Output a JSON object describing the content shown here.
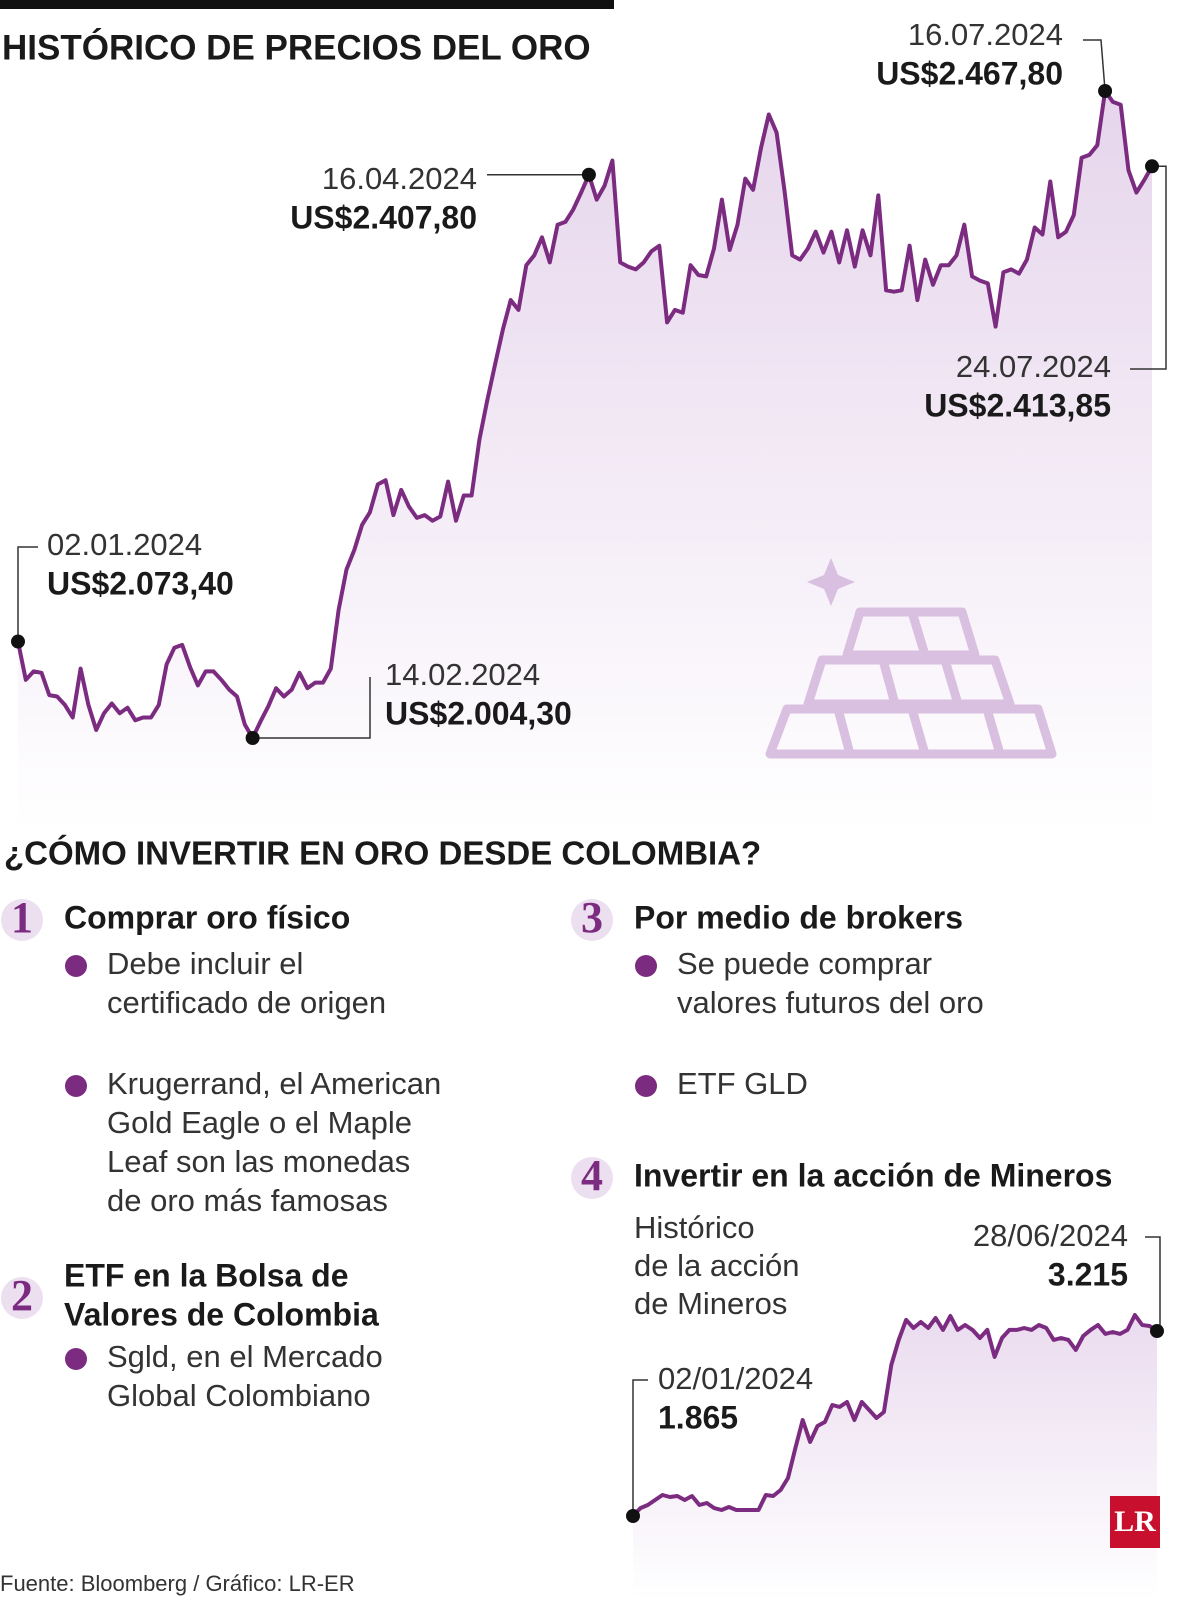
{
  "chart_data": [
    {
      "type": "line",
      "title": "HISTÓRICO DE PRECIOS DEL ORO",
      "color": "#7b2b80",
      "values": [
        2073.4,
        2046,
        2052,
        2051,
        2035,
        2034,
        2028,
        2019,
        2054,
        2028,
        2010,
        2022,
        2029,
        2022,
        2026,
        2017,
        2019,
        2019,
        2028,
        2057,
        2069,
        2071,
        2055,
        2042,
        2052,
        2052,
        2046,
        2039,
        2034,
        2014,
        2004.3,
        2016,
        2027,
        2040,
        2034,
        2039,
        2051,
        2040,
        2044,
        2044,
        2054,
        2096,
        2125,
        2139,
        2157,
        2166,
        2186,
        2189,
        2164,
        2182,
        2170,
        2162,
        2164,
        2160,
        2163,
        2188,
        2160,
        2178,
        2178,
        2218,
        2246,
        2272,
        2297,
        2318,
        2311,
        2343,
        2350,
        2363,
        2345,
        2372,
        2374,
        2383,
        2395,
        2407.8,
        2390,
        2400,
        2418,
        2345,
        2342,
        2340,
        2345,
        2353,
        2357,
        2302,
        2311,
        2309,
        2343,
        2336,
        2335,
        2355,
        2390,
        2354,
        2372,
        2405,
        2397,
        2427,
        2451,
        2438,
        2397,
        2350,
        2347,
        2355,
        2367,
        2352,
        2367,
        2345,
        2368,
        2342,
        2368,
        2350,
        2393,
        2325,
        2324,
        2325,
        2357,
        2318,
        2347,
        2329,
        2343,
        2343,
        2350,
        2372,
        2335,
        2332,
        2330,
        2299,
        2338,
        2340,
        2337,
        2347,
        2370,
        2365,
        2403,
        2363,
        2367,
        2379,
        2420,
        2422,
        2429,
        2467.8,
        2460,
        2458,
        2411,
        2395,
        2404,
        2413.85
      ],
      "annotations": [
        {
          "date": "02.01.2024",
          "label": "US$2.073,40",
          "value": 2073.4
        },
        {
          "date": "14.02.2024",
          "label": "US$2.004,30",
          "value": 2004.3
        },
        {
          "date": "16.04.2024",
          "label": "US$2.407,80",
          "value": 2407.8
        },
        {
          "date": "16.07.2024",
          "label": "US$2.467,80",
          "value": 2467.8
        },
        {
          "date": "24.07.2024",
          "label": "US$2.413,85",
          "value": 2413.85
        }
      ]
    },
    {
      "type": "line",
      "title": [
        "Histórico",
        "de la acción",
        "de Mineros"
      ],
      "color": "#7b2b80",
      "values": [
        1865,
        1923,
        1945,
        1982,
        2018,
        2004,
        2011,
        1982,
        2011,
        1945,
        1960,
        1923,
        1909,
        1931,
        1909,
        1909,
        1909,
        1909,
        2018,
        2011,
        2055,
        2142,
        2361,
        2566,
        2405,
        2522,
        2551,
        2675,
        2661,
        2697,
        2566,
        2697,
        2639,
        2580,
        2624,
        2967,
        3150,
        3296,
        3237,
        3281,
        3237,
        3310,
        3223,
        3325,
        3223,
        3259,
        3223,
        3164,
        3223,
        3026,
        3164,
        3223,
        3223,
        3237,
        3223,
        3259,
        3237,
        3150,
        3164,
        3150,
        3077,
        3179,
        3223,
        3259,
        3194,
        3208,
        3194,
        3223,
        3332,
        3259,
        3252,
        3215
      ],
      "annotations": [
        {
          "date": "02/01/2024",
          "label": "1.865",
          "value": 1865
        },
        {
          "date": "28/06/2024",
          "label": "3.215",
          "value": 3215
        }
      ]
    }
  ],
  "section_title": "¿CÓMO INVERTIR EN ORO DESDE COLOMBIA?",
  "options": [
    {
      "number": 1,
      "title": [
        "Comprar oro físico"
      ],
      "bullets": [
        [
          "Debe incluir el",
          "certificado de origen"
        ],
        [
          "Krugerrand, el American",
          "Gold Eagle o el Maple",
          "Leaf son las monedas",
          "de oro más famosas"
        ]
      ]
    },
    {
      "number": 2,
      "title": [
        "ETF en la Bolsa de",
        "Valores de Colombia"
      ],
      "bullets": [
        [
          "Sgld, en el Mercado",
          "Global Colombiano"
        ]
      ]
    },
    {
      "number": 3,
      "title": [
        "Por medio de brokers"
      ],
      "bullets": [
        [
          "Se puede comprar",
          "valores futuros del oro"
        ],
        [
          "ETF GLD"
        ]
      ]
    },
    {
      "number": 4,
      "title": [
        "Invertir en la acción de Mineros"
      ],
      "bullets": []
    }
  ],
  "source": "Fuente: Bloomberg / Gráfico: LR-ER",
  "logo": "LR"
}
